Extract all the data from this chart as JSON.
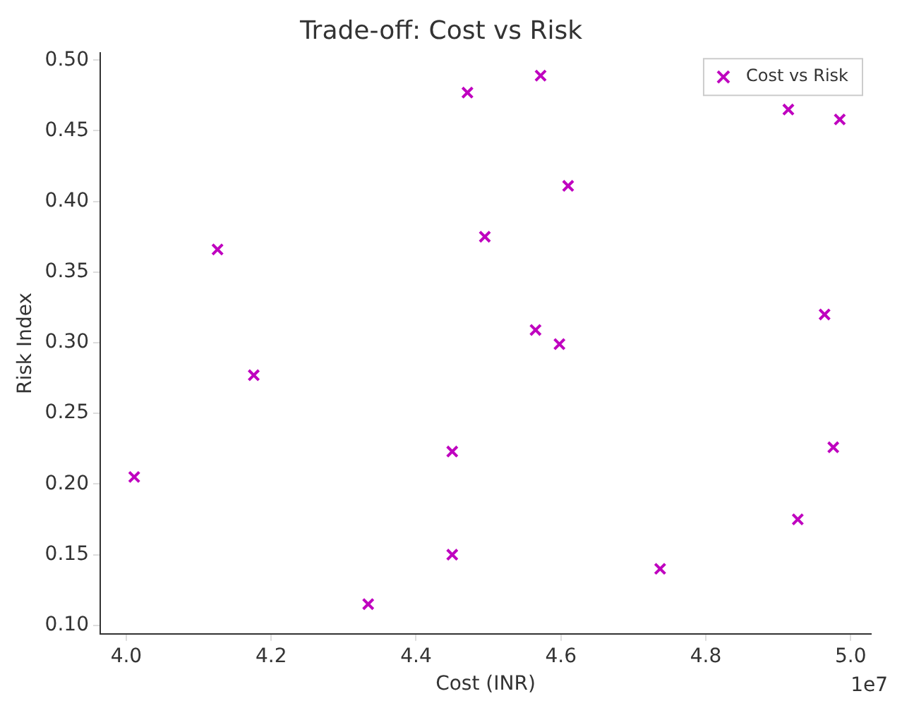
{
  "chart_data": {
    "type": "scatter",
    "title": "Trade-off: Cost vs Risk",
    "xlabel": "Cost (INR)",
    "ylabel": "Risk Index",
    "annotations": [
      "1e7"
    ],
    "x": [
      4.011,
      4.126,
      4.176,
      4.334,
      4.45,
      4.45,
      4.471,
      4.495,
      4.565,
      4.572,
      4.598,
      4.61,
      4.737,
      4.914,
      4.927,
      4.964,
      4.976,
      4.985
    ],
    "series": [
      {
        "name": "Cost vs Risk",
        "color": "#bf00bf",
        "values": [
          0.205,
          0.366,
          0.277,
          0.115,
          0.223,
          0.15,
          0.477,
          0.375,
          0.309,
          0.489,
          0.299,
          0.411,
          0.14,
          0.465,
          0.175,
          0.32,
          0.226,
          0.458
        ]
      }
    ],
    "xlim": [
      3.964,
      5.028
    ],
    "ylim": [
      0.094,
      0.505
    ],
    "xticks": [
      {
        "value": 4.0,
        "label": "4.0"
      },
      {
        "value": 4.2,
        "label": "4.2"
      },
      {
        "value": 4.4,
        "label": "4.4"
      },
      {
        "value": 4.6,
        "label": "4.6"
      },
      {
        "value": 4.8,
        "label": "4.8"
      },
      {
        "value": 5.0,
        "label": "5.0"
      }
    ],
    "yticks": [
      {
        "value": 0.1,
        "label": "0.10"
      },
      0.15,
      {
        "value": 0.2,
        "label": "0.20"
      },
      0.25,
      {
        "value": 0.3,
        "label": "0.30"
      },
      0.35,
      {
        "value": 0.4,
        "label": "0.40"
      },
      0.45,
      {
        "value": 0.5,
        "label": "0.50"
      }
    ],
    "grid": false,
    "legend": "top right",
    "marker": "cross"
  }
}
